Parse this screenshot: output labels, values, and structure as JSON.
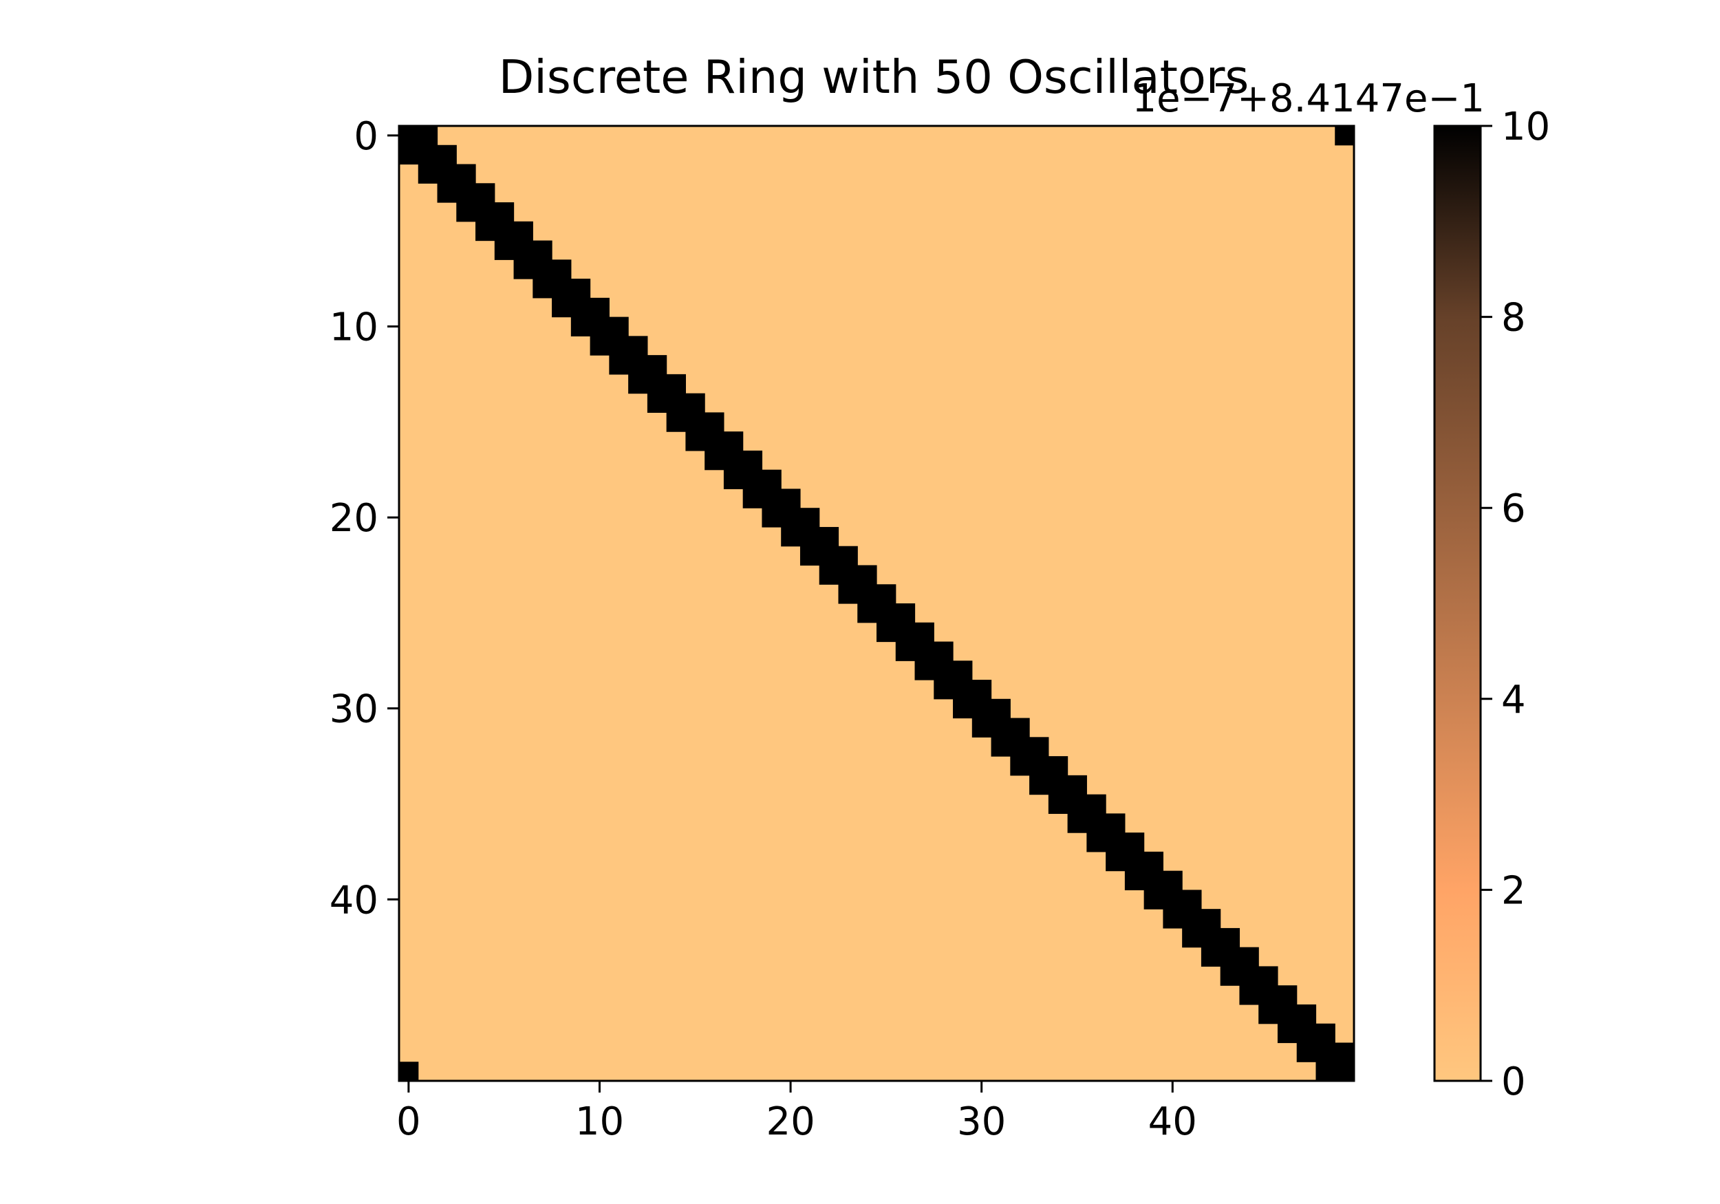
{
  "chart_data": {
    "type": "heatmap",
    "title": "Discrete Ring with 50 Oscillators",
    "n": 50,
    "matrix_description": "ring adjacency: cells (i,i), (i,i+1 mod n), (i,i-1 mod n) are high, others low",
    "high_value": 10,
    "low_value": 0,
    "xticks": [
      0,
      10,
      20,
      30,
      40
    ],
    "yticks": [
      0,
      10,
      20,
      30,
      40
    ],
    "xlim": [
      -0.5,
      49.5
    ],
    "ylim": [
      49.5,
      -0.5
    ],
    "colorbar": {
      "ticks": [
        0,
        2,
        4,
        6,
        8,
        10
      ],
      "range": [
        0,
        10
      ],
      "offset_label": "1e−7+8.4147e−1",
      "colormap": "copper_r",
      "color_high": "#000000",
      "color_low": "#ffc77f"
    }
  }
}
